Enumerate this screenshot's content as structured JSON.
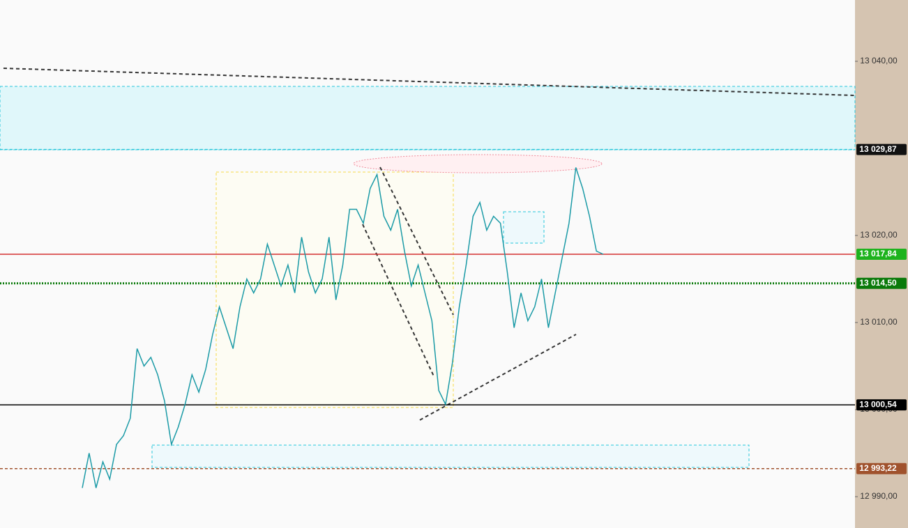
{
  "chart_data": {
    "type": "line",
    "series": [
      {
        "color": "#1a9aa6",
        "values": [
          12991,
          12995,
          12991,
          12994,
          12992,
          12996,
          12997,
          12999,
          13007,
          13005,
          13006,
          13004,
          13001,
          12996,
          12998,
          13000.6,
          13004,
          13002,
          13004.6,
          13008.6,
          13011.8,
          13009.4,
          13007,
          13011.8,
          13015,
          13013.4,
          13015,
          13019,
          13016.6,
          13014.2,
          13016.6,
          13013.4,
          13019.8,
          13015.8,
          13013.4,
          13015,
          13019.8,
          13012.6,
          13016.6,
          13023,
          13023,
          13021.4,
          13025.4,
          13027,
          13022.2,
          13020.6,
          13023,
          13018.2,
          13014.2,
          13016.6,
          13013.4,
          13010.2,
          13002.2,
          13000.6,
          13005.4,
          13011.8,
          13016.6,
          13022.2,
          13023.8,
          13020.6,
          13022.2,
          13021.4,
          13015.8,
          13009.4,
          13013.4,
          13010.2,
          13011.8,
          13015,
          13009.4,
          13013.4,
          13017.4,
          13021.4,
          13027.8,
          13025.4,
          13022.2,
          13018.2,
          13017.84
        ]
      }
    ],
    "ylim": [
      12986.4,
      13047.04
    ],
    "yticks": [
      {
        "value": 12990,
        "label": "12 990,00"
      },
      {
        "value": 13000,
        "label": "13 000,00"
      },
      {
        "value": 13010,
        "label": "13 010,00"
      },
      {
        "value": 13020,
        "label": "13 020,00"
      },
      {
        "value": 13040,
        "label": "13 040,00"
      }
    ],
    "levels": [
      {
        "value": 13029.87,
        "label": "13 029,87",
        "color": "#26c6da",
        "label_color": "#111111"
      },
      {
        "value": 13017.84,
        "label": "13 017,84",
        "color": "#d32f2f",
        "label_color": "#1db31d"
      },
      {
        "value": 13014.5,
        "label": "13 014,50",
        "color": "#0a7a0a",
        "label_color": "#0a7a0a"
      },
      {
        "value": 13000.54,
        "label": "13 000,54",
        "color": "#000000",
        "label_color": "#000000"
      },
      {
        "value": 12993.22,
        "label": "12 993,22",
        "color": "#a0522d",
        "label_color": "#a0522d"
      }
    ]
  }
}
